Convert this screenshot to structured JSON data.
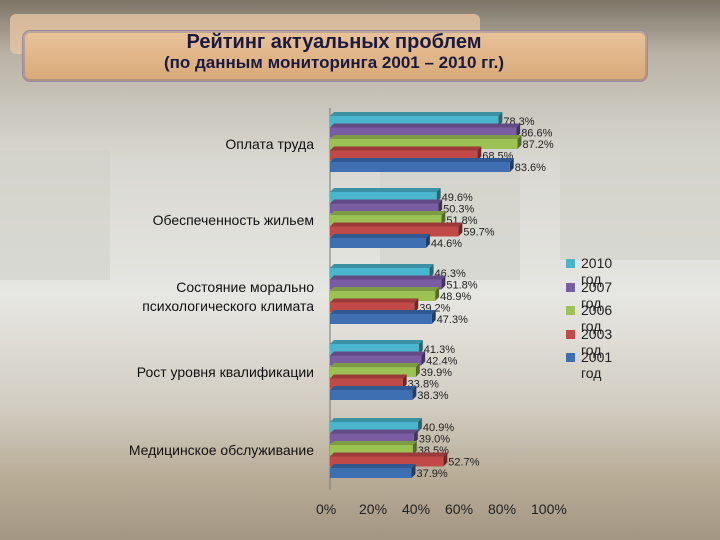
{
  "title": {
    "line1": "Рейтинг актуальных проблем",
    "line2": "(по данным мониторинга 2001 – 2010 гг.)"
  },
  "chart_data": {
    "type": "bar",
    "orientation": "horizontal",
    "categories": [
      "Оплата труда",
      "Обеспеченность жильем",
      "Состояние морально психологического климата",
      "Рост уровня квалификации",
      "Медицинское обслуживание"
    ],
    "category_display": [
      [
        "Оплата труда"
      ],
      [
        "Обеспеченность жильем"
      ],
      [
        "Состояние морально",
        "психологического климата"
      ],
      [
        "Рост уровня квалификации"
      ],
      [
        "Медицинское обслуживание"
      ]
    ],
    "series": [
      {
        "name": "2010 год",
        "color": "#4ab6cd",
        "values": [
          78.3,
          49.6,
          46.3,
          41.3,
          40.9
        ],
        "labels": [
          "78.3%",
          "49.6%",
          "46.3%",
          "41.3%",
          "40.9%"
        ]
      },
      {
        "name": "2007 год",
        "color": "#7a5ca3",
        "values": [
          86.6,
          50.3,
          51.8,
          42.4,
          39.0
        ],
        "labels": [
          "86.6%",
          "50.3%",
          "51.8%",
          "42.4%",
          "39.0%"
        ]
      },
      {
        "name": "2006 год",
        "color": "#9bc253",
        "values": [
          87.2,
          51.8,
          48.9,
          39.9,
          38.5
        ],
        "labels": [
          "87.2%",
          "51.8%",
          "48.9%",
          "39.9%",
          "38.5%"
        ]
      },
      {
        "name": "2003 год",
        "color": "#c14a48",
        "values": [
          68.5,
          59.7,
          39.2,
          33.8,
          52.7
        ],
        "labels": [
          "68.5%",
          "59.7%",
          "39.2%",
          "33.8%",
          "52.7%"
        ]
      },
      {
        "name": "2001 год",
        "color": "#3f6fb3",
        "values": [
          83.6,
          44.6,
          47.3,
          38.3,
          37.9
        ],
        "labels": [
          "83.6%",
          "44.6%",
          "47.3%",
          "38.3%",
          "37.9%"
        ]
      }
    ],
    "xlim": [
      0,
      100
    ],
    "x_ticks": [
      "0%",
      "20%",
      "40%",
      "60%",
      "80%",
      "100%"
    ],
    "legend_position": "right",
    "grid": false
  }
}
